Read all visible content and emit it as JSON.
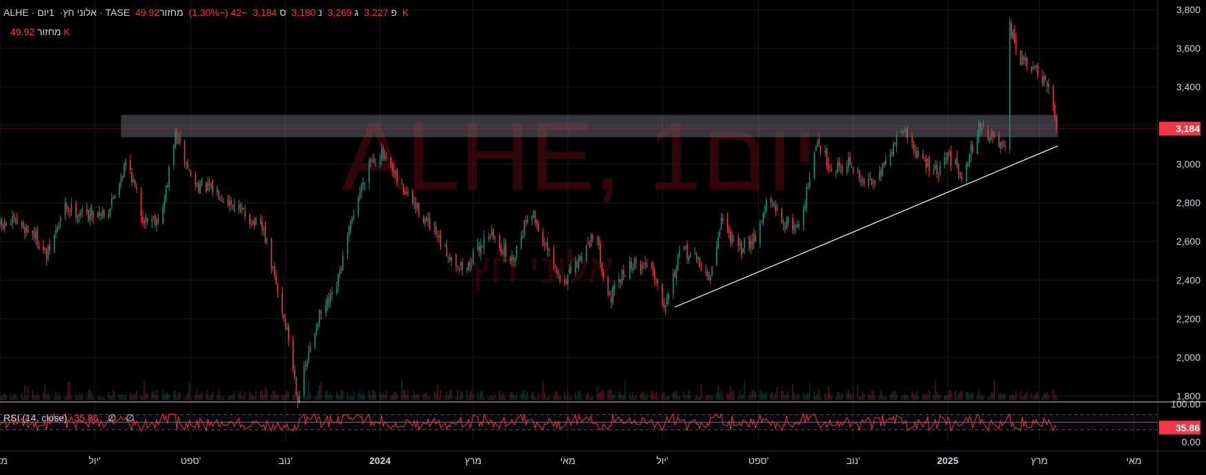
{
  "header": {
    "symbol": "ALHE",
    "name": "אלוני חץ",
    "interval": "1יום",
    "exchange": "TASE",
    "open_label": "פ",
    "open": "3,227",
    "high_label": "ג",
    "high": "3,269",
    "low_label": "נ",
    "low": "3,180",
    "close_label": "ס",
    "close": "3,184",
    "change": "−42 (−1.30%)",
    "volume_label": "מחזור",
    "volume": "49.92 K"
  },
  "volume_legend": {
    "label": "מחזור",
    "value": "49.92 K"
  },
  "rsi_legend": {
    "label": "RSI (14, close)",
    "value": "35.86",
    "empty1": "∅",
    "empty2": "∅"
  },
  "watermark": {
    "title": "ALHE, 1יום",
    "subtitle": "אלוני חץ"
  },
  "colors": {
    "up": "#089981",
    "down": "#f23645",
    "background": "#000000",
    "text": "#d1d4dc",
    "rsi_line": "#f23645",
    "price_badge": "#f23645"
  },
  "chart_data": [
    {
      "type": "candlestick",
      "symbol": "ALHE",
      "y_axis_ticks": [
        1800,
        2000,
        2200,
        2400,
        2600,
        2800,
        3000,
        3200,
        3400,
        3600,
        3800
      ],
      "y_axis_labels": [
        "1,800",
        "2,000",
        "2,200",
        "2,400",
        "2,600",
        "2,800",
        "3,000",
        "3,200",
        "3,400",
        "3,600",
        "3,800"
      ],
      "ylim": [
        1780,
        3850
      ],
      "x_axis_labels": [
        "מאי",
        "יול'",
        "ספט'",
        "נוב'",
        "2024",
        "מרץ",
        "מאי",
        "יול'",
        "ספט'",
        "נוב'",
        "2025",
        "מרץ",
        "מאי"
      ],
      "bold_x_labels": [
        "2024",
        "2025"
      ],
      "x_range_days": [
        0,
        745
      ],
      "x_tick_days": [
        0,
        61,
        123,
        184,
        245,
        305,
        366,
        427,
        489,
        550,
        611,
        670,
        731
      ],
      "last_price": "3,184",
      "last_price_value": 3184,
      "price_path": [
        [
          0,
          2680
        ],
        [
          10,
          2700
        ],
        [
          22,
          2640
        ],
        [
          30,
          2520
        ],
        [
          42,
          2780
        ],
        [
          55,
          2740
        ],
        [
          70,
          2760
        ],
        [
          82,
          3030
        ],
        [
          92,
          2720
        ],
        [
          104,
          2720
        ],
        [
          113,
          3150
        ],
        [
          125,
          2900
        ],
        [
          140,
          2860
        ],
        [
          155,
          2760
        ],
        [
          170,
          2650
        ],
        [
          186,
          2100
        ],
        [
          192,
          1790
        ],
        [
          205,
          2200
        ],
        [
          216,
          2330
        ],
        [
          228,
          2750
        ],
        [
          238,
          3020
        ],
        [
          246,
          3050
        ],
        [
          257,
          2900
        ],
        [
          270,
          2760
        ],
        [
          287,
          2550
        ],
        [
          300,
          2450
        ],
        [
          315,
          2650
        ],
        [
          330,
          2500
        ],
        [
          342,
          2780
        ],
        [
          350,
          2600
        ],
        [
          362,
          2380
        ],
        [
          372,
          2480
        ],
        [
          383,
          2660
        ],
        [
          393,
          2300
        ],
        [
          405,
          2480
        ],
        [
          420,
          2480
        ],
        [
          428,
          2280
        ],
        [
          440,
          2560
        ],
        [
          450,
          2500
        ],
        [
          458,
          2400
        ],
        [
          465,
          2720
        ],
        [
          476,
          2550
        ],
        [
          488,
          2640
        ],
        [
          495,
          2820
        ],
        [
          505,
          2700
        ],
        [
          515,
          2680
        ],
        [
          520,
          2850
        ],
        [
          527,
          3120
        ],
        [
          536,
          2980
        ],
        [
          548,
          3010
        ],
        [
          557,
          2890
        ],
        [
          572,
          3000
        ],
        [
          581,
          3200
        ],
        [
          592,
          3040
        ],
        [
          605,
          2950
        ],
        [
          611,
          3050
        ],
        [
          620,
          2950
        ],
        [
          632,
          3200
        ],
        [
          648,
          3060
        ],
        [
          651,
          3700
        ],
        [
          658,
          3540
        ],
        [
          668,
          3480
        ],
        [
          678,
          3360
        ],
        [
          681,
          3184
        ]
      ],
      "resistance_zone": {
        "from_day": 78,
        "to_day": 682,
        "low": 3140,
        "high": 3255
      },
      "trendline": {
        "from": [
          435,
          2260
        ],
        "to": [
          682,
          3095
        ]
      }
    },
    {
      "type": "bar",
      "name": "מחזור",
      "last_value": "49.92 K",
      "source_of_x": "same as price"
    },
    {
      "type": "line",
      "name": "RSI (14, close)",
      "last_value": 35.86,
      "last_value_label": "35.86",
      "ylim": [
        0,
        100
      ],
      "y_axis_labels": [
        "100.00",
        "0.00"
      ],
      "band_upper": 70,
      "band_middle": 50,
      "band_lower": 30
    }
  ]
}
